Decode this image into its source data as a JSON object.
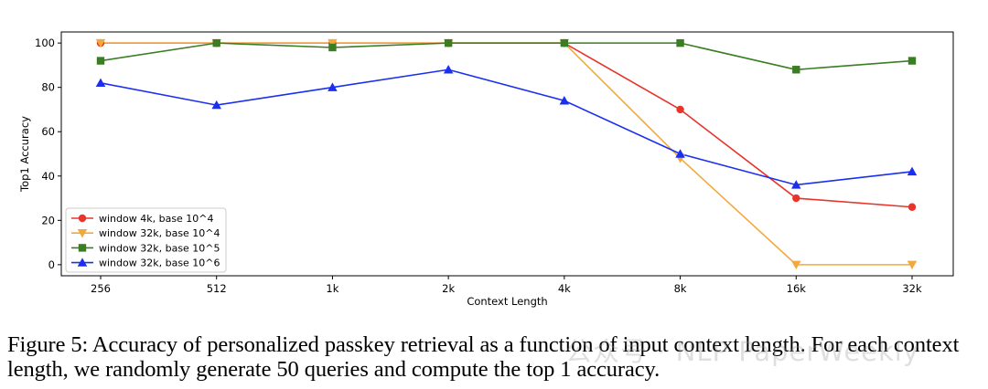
{
  "chart_data": {
    "type": "line",
    "title": "",
    "xlabel": "Context Length",
    "ylabel": "Top1 Accuracy",
    "categories": [
      "256",
      "512",
      "1k",
      "2k",
      "4k",
      "8k",
      "16k",
      "32k"
    ],
    "ylim": [
      -5,
      105
    ],
    "yticks": [
      0,
      20,
      40,
      60,
      80,
      100
    ],
    "grid": false,
    "legend_position": "lower-left",
    "series": [
      {
        "name": "window 4k, base 10^4",
        "color": "#e8352b",
        "marker": "circle",
        "values": [
          100,
          100,
          100,
          100,
          100,
          70,
          30,
          26
        ]
      },
      {
        "name": "window 32k, base 10^4",
        "color": "#f2a93b",
        "marker": "triangle-down",
        "values": [
          100,
          100,
          100,
          100,
          100,
          48,
          0,
          0
        ]
      },
      {
        "name": "window 32k, base 10^5",
        "color": "#3a7d22",
        "marker": "square",
        "values": [
          92,
          100,
          98,
          100,
          100,
          100,
          88,
          92
        ]
      },
      {
        "name": "window 32k, base 10^6",
        "color": "#1a2ff0",
        "marker": "triangle-up",
        "values": [
          82,
          72,
          80,
          88,
          74,
          50,
          36,
          42
        ]
      }
    ]
  },
  "caption": {
    "text": "Figure 5: Accuracy of personalized passkey retrieval as a function of input context length. For each context length, we randomly generate 50 queries and compute the top 1 accuracy."
  },
  "watermark": {
    "text": "公众号 · NLP PaperWeekly"
  }
}
